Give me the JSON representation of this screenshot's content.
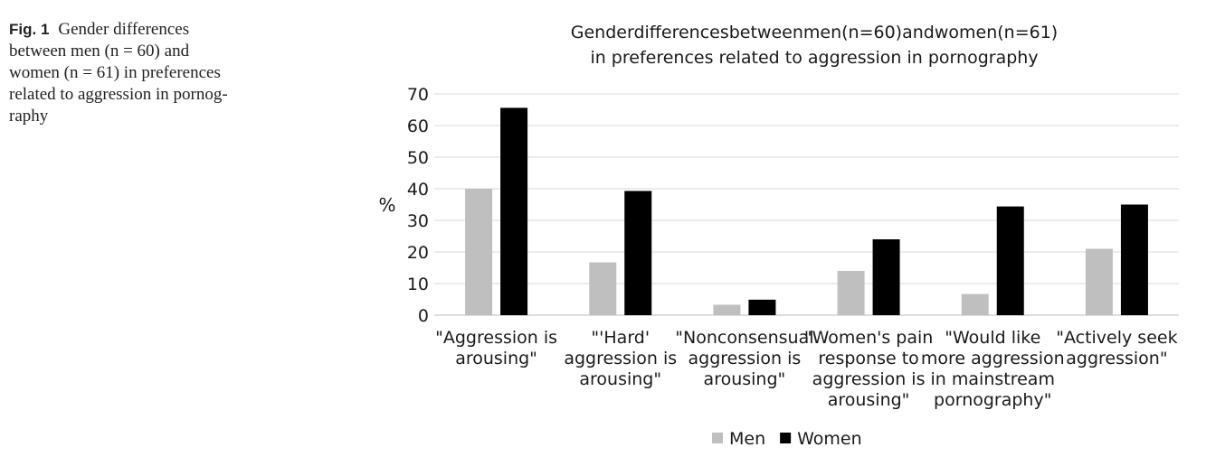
{
  "figure": {
    "label": "Fig. 1",
    "caption_lines": [
      "Gender differences",
      "between men (n = 60) and",
      "women (n = 61) in preferences",
      "related to aggression in pornog-",
      "raphy"
    ]
  },
  "chart_data": {
    "type": "bar",
    "title_lines": [
      "Genderdifferencesbetweenmen(n=60)andwomen(n=61)",
      "in preferences related to aggression in pornography"
    ],
    "ylabel": "%",
    "ylim": [
      0,
      70
    ],
    "yticks": [
      0,
      10,
      20,
      30,
      40,
      50,
      60,
      70
    ],
    "grid": true,
    "legend_position": "bottom",
    "categories": [
      [
        "\"Aggression is",
        "arousing\""
      ],
      [
        "\"'Hard'",
        "aggression is",
        "arousing\""
      ],
      [
        "\"Nonconsensual",
        "aggression is",
        "arousing\""
      ],
      [
        "\"Women's pain",
        "response to",
        "aggression is",
        "arousing\""
      ],
      [
        "\"Would like",
        "more aggression",
        "in mainstream",
        "pornography\""
      ],
      [
        "\"Actively seek",
        "aggression\""
      ]
    ],
    "series": [
      {
        "name": "Men",
        "color": "#bfbfbf",
        "values": [
          40,
          16.7,
          3.3,
          14,
          6.7,
          21
        ]
      },
      {
        "name": "Women",
        "color": "#000000",
        "values": [
          65.6,
          39.3,
          4.9,
          24,
          34.4,
          35
        ]
      }
    ]
  }
}
